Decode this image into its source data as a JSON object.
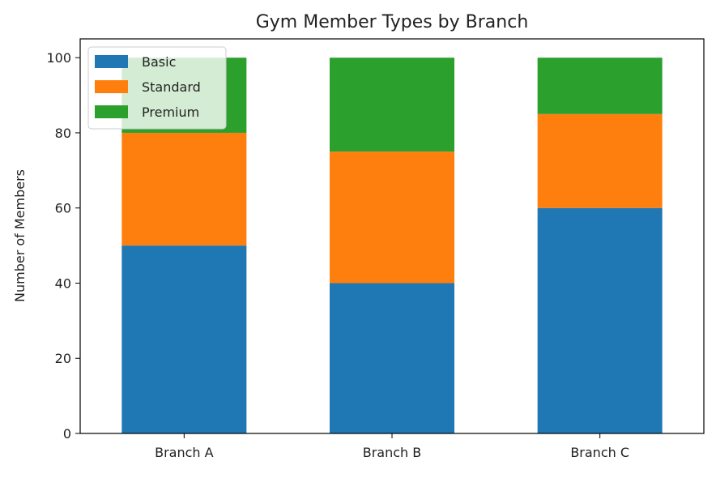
{
  "chart_data": {
    "type": "bar",
    "stacked": true,
    "title": "Gym Member Types by Branch",
    "xlabel": "",
    "ylabel": "Number of Members",
    "categories": [
      "Branch A",
      "Branch B",
      "Branch C"
    ],
    "series": [
      {
        "name": "Basic",
        "values": [
          50,
          40,
          60
        ],
        "color": "#1f77b4"
      },
      {
        "name": "Standard",
        "values": [
          30,
          35,
          25
        ],
        "color": "#ff7f0e"
      },
      {
        "name": "Premium",
        "values": [
          20,
          25,
          15
        ],
        "color": "#2ca02c"
      }
    ],
    "ylim": [
      0,
      105
    ],
    "yticks": [
      0,
      20,
      40,
      60,
      80,
      100
    ],
    "grid": false,
    "legend_position": "top-left"
  }
}
